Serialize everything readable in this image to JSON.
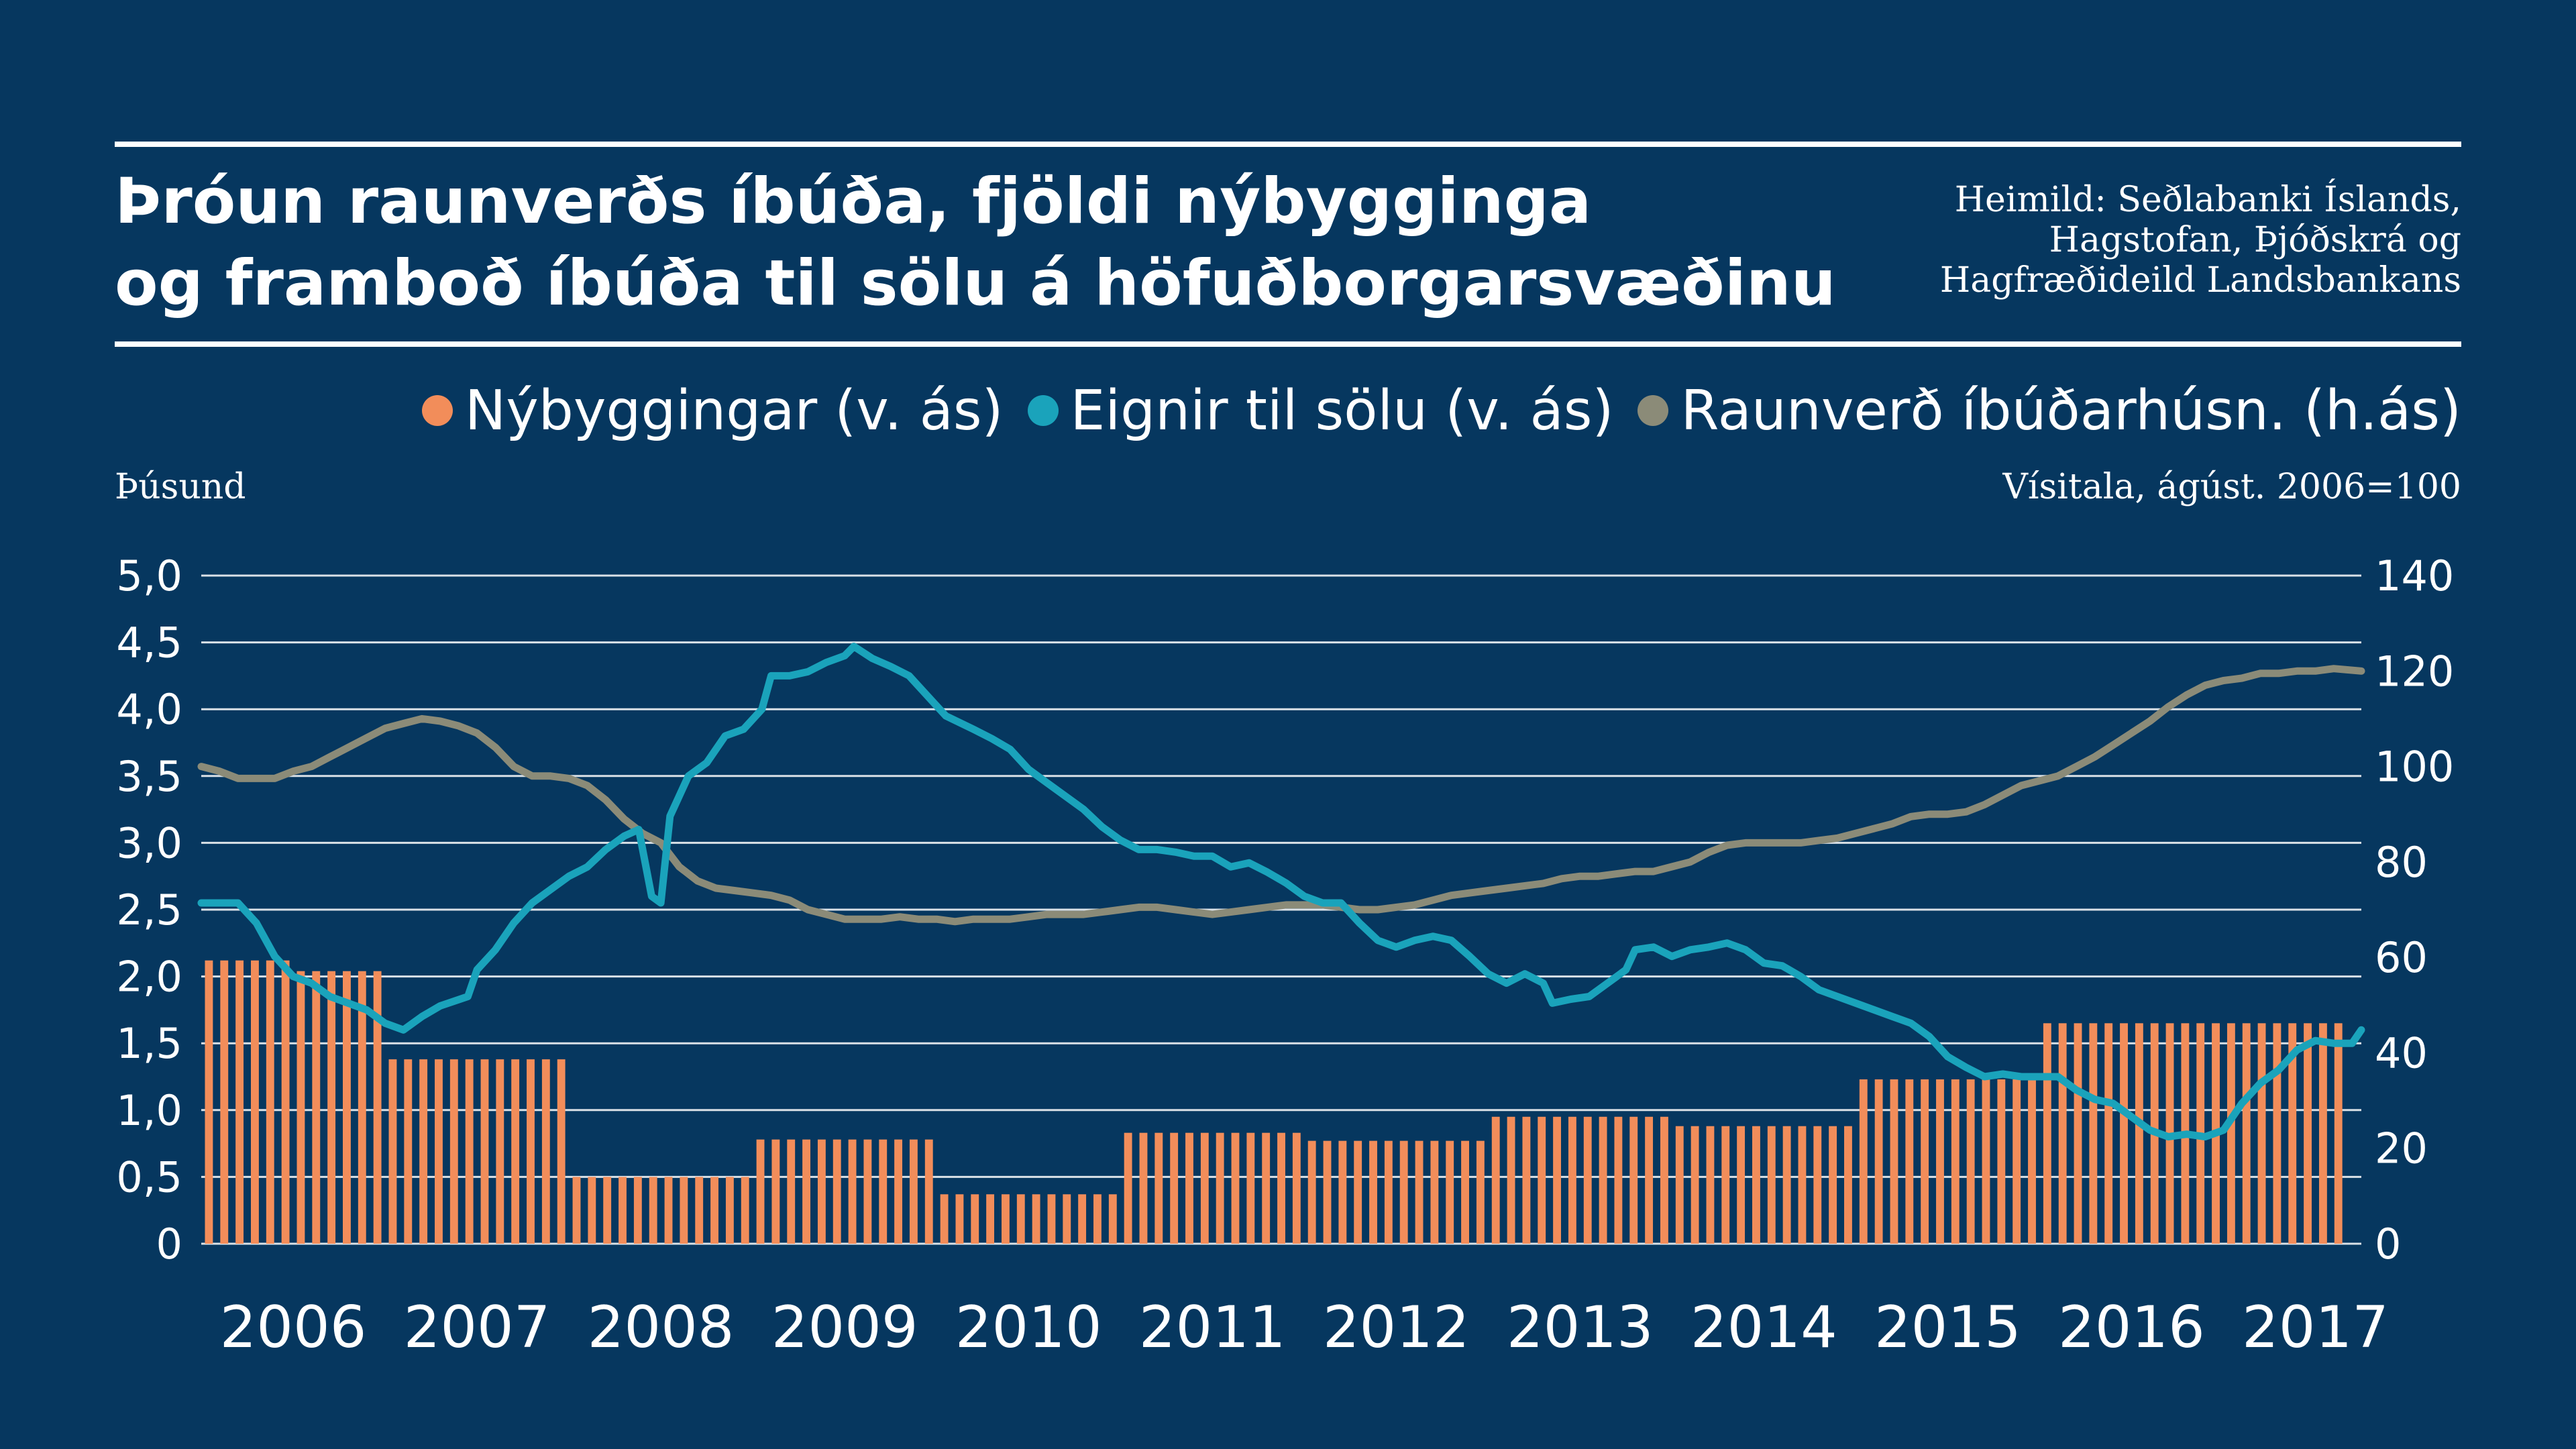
{
  "title": {
    "line1": "Þróun raunverðs íbúða, fjöldi nýbygginga",
    "line2": "og framboð íbúða til sölu á höfuðborgarsvæðinu"
  },
  "source": {
    "line1": "Heimild: Seðlabanki Íslands,",
    "line2": "Hagstofan, Þjóðskrá og",
    "line3": "Hagfræðideild Landsbankans"
  },
  "colors": {
    "background": "#06375f",
    "bars": "#f28d5a",
    "teal": "#1aa3bb",
    "gray": "#8b8b78",
    "grid": "#ffffff",
    "text": "#ffffff"
  },
  "chart_data": {
    "type": "bar+line",
    "title": "Þróun raunverðs íbúða, fjöldi nýbygginga og framboð íbúða til sölu á höfuðborgarsvæðinu",
    "legend_placement": "top-right",
    "grid": true,
    "left_axis": {
      "label": "Þúsund",
      "range": [
        0,
        5
      ],
      "ticks": [
        "0",
        "0,5",
        "1,0",
        "1,5",
        "2,0",
        "2,5",
        "3,0",
        "3,5",
        "4,0",
        "4,5",
        "5,0"
      ]
    },
    "right_axis": {
      "label": "Vísitala, ágúst. 2006=100",
      "range": [
        0,
        140
      ],
      "ticks": [
        "0",
        "20",
        "40",
        "60",
        "80",
        "100",
        "120",
        "140"
      ]
    },
    "x_axis": {
      "start": 2006.0,
      "end": 2017.75,
      "year_labels": [
        "2006",
        "2007",
        "2008",
        "2009",
        "2010",
        "2011",
        "2012",
        "2013",
        "2014",
        "2015",
        "2016",
        "2017"
      ]
    },
    "bars": {
      "name": "Nýbyggingar (v. ás)",
      "axis": "left",
      "bars_per_year": 12,
      "start": 2006.0,
      "count": 140,
      "annual_values": [
        {
          "year": 2006,
          "value": 2.12
        },
        {
          "year": 2006.5,
          "value": 2.04
        },
        {
          "year": 2007,
          "value": 1.38
        },
        {
          "year": 2008,
          "value": 0.5
        },
        {
          "year": 2009,
          "value": 0.78
        },
        {
          "year": 2010,
          "value": 0.37
        },
        {
          "year": 2011,
          "value": 0.83
        },
        {
          "year": 2012,
          "value": 0.77
        },
        {
          "year": 2013,
          "value": 0.95
        },
        {
          "year": 2014,
          "value": 0.88
        },
        {
          "year": 2015,
          "value": 1.23
        },
        {
          "year": 2016,
          "value": 1.65
        },
        {
          "year": 2017,
          "value": 1.65
        }
      ]
    },
    "series": [
      {
        "name": "Eignir til sölu (v. ás)",
        "axis": "left",
        "points": [
          [
            2006.0,
            2.55
          ],
          [
            2006.2,
            2.55
          ],
          [
            2006.3,
            2.4
          ],
          [
            2006.4,
            2.15
          ],
          [
            2006.5,
            2.0
          ],
          [
            2006.6,
            1.95
          ],
          [
            2006.7,
            1.85
          ],
          [
            2006.8,
            1.8
          ],
          [
            2006.9,
            1.75
          ],
          [
            2007.0,
            1.65
          ],
          [
            2007.1,
            1.6
          ],
          [
            2007.2,
            1.7
          ],
          [
            2007.3,
            1.78
          ],
          [
            2007.45,
            1.85
          ],
          [
            2007.5,
            2.05
          ],
          [
            2007.6,
            2.2
          ],
          [
            2007.7,
            2.4
          ],
          [
            2007.8,
            2.55
          ],
          [
            2007.9,
            2.65
          ],
          [
            2008.0,
            2.75
          ],
          [
            2008.1,
            2.82
          ],
          [
            2008.2,
            2.95
          ],
          [
            2008.3,
            3.05
          ],
          [
            2008.38,
            3.1
          ],
          [
            2008.45,
            2.6
          ],
          [
            2008.5,
            2.55
          ],
          [
            2008.55,
            3.2
          ],
          [
            2008.65,
            3.5
          ],
          [
            2008.75,
            3.6
          ],
          [
            2008.85,
            3.8
          ],
          [
            2008.95,
            3.85
          ],
          [
            2009.05,
            4.0
          ],
          [
            2009.1,
            4.25
          ],
          [
            2009.2,
            4.25
          ],
          [
            2009.3,
            4.28
          ],
          [
            2009.4,
            4.35
          ],
          [
            2009.5,
            4.4
          ],
          [
            2009.55,
            4.47
          ],
          [
            2009.65,
            4.38
          ],
          [
            2009.75,
            4.32
          ],
          [
            2009.85,
            4.25
          ],
          [
            2009.95,
            4.1
          ],
          [
            2010.05,
            3.95
          ],
          [
            2010.2,
            3.85
          ],
          [
            2010.3,
            3.78
          ],
          [
            2010.4,
            3.7
          ],
          [
            2010.5,
            3.55
          ],
          [
            2010.6,
            3.45
          ],
          [
            2010.7,
            3.35
          ],
          [
            2010.8,
            3.25
          ],
          [
            2010.9,
            3.12
          ],
          [
            2011.0,
            3.02
          ],
          [
            2011.1,
            2.95
          ],
          [
            2011.2,
            2.95
          ],
          [
            2011.3,
            2.93
          ],
          [
            2011.4,
            2.9
          ],
          [
            2011.5,
            2.9
          ],
          [
            2011.6,
            2.82
          ],
          [
            2011.7,
            2.85
          ],
          [
            2011.8,
            2.78
          ],
          [
            2011.9,
            2.7
          ],
          [
            2012.0,
            2.6
          ],
          [
            2012.1,
            2.55
          ],
          [
            2012.2,
            2.55
          ],
          [
            2012.3,
            2.4
          ],
          [
            2012.4,
            2.27
          ],
          [
            2012.5,
            2.22
          ],
          [
            2012.6,
            2.27
          ],
          [
            2012.7,
            2.3
          ],
          [
            2012.8,
            2.27
          ],
          [
            2012.9,
            2.15
          ],
          [
            2013.0,
            2.02
          ],
          [
            2013.1,
            1.95
          ],
          [
            2013.2,
            2.02
          ],
          [
            2013.3,
            1.95
          ],
          [
            2013.35,
            1.8
          ],
          [
            2013.45,
            1.83
          ],
          [
            2013.55,
            1.85
          ],
          [
            2013.65,
            1.95
          ],
          [
            2013.75,
            2.05
          ],
          [
            2013.8,
            2.2
          ],
          [
            2013.9,
            2.22
          ],
          [
            2014.0,
            2.15
          ],
          [
            2014.1,
            2.2
          ],
          [
            2014.2,
            2.22
          ],
          [
            2014.3,
            2.25
          ],
          [
            2014.4,
            2.2
          ],
          [
            2014.5,
            2.1
          ],
          [
            2014.6,
            2.08
          ],
          [
            2014.7,
            2.0
          ],
          [
            2014.8,
            1.9
          ],
          [
            2014.9,
            1.85
          ],
          [
            2015.0,
            1.8
          ],
          [
            2015.1,
            1.75
          ],
          [
            2015.2,
            1.7
          ],
          [
            2015.3,
            1.65
          ],
          [
            2015.4,
            1.55
          ],
          [
            2015.5,
            1.4
          ],
          [
            2015.6,
            1.32
          ],
          [
            2015.7,
            1.25
          ],
          [
            2015.8,
            1.27
          ],
          [
            2015.9,
            1.25
          ],
          [
            2016.0,
            1.25
          ],
          [
            2016.1,
            1.25
          ],
          [
            2016.2,
            1.15
          ],
          [
            2016.3,
            1.08
          ],
          [
            2016.4,
            1.05
          ],
          [
            2016.5,
            0.95
          ],
          [
            2016.6,
            0.85
          ],
          [
            2016.7,
            0.8
          ],
          [
            2016.8,
            0.82
          ],
          [
            2016.9,
            0.8
          ],
          [
            2017.0,
            0.85
          ],
          [
            2017.1,
            1.05
          ],
          [
            2017.2,
            1.2
          ],
          [
            2017.3,
            1.3
          ],
          [
            2017.4,
            1.45
          ],
          [
            2017.5,
            1.52
          ],
          [
            2017.6,
            1.5
          ],
          [
            2017.7,
            1.5
          ],
          [
            2017.75,
            1.6
          ]
        ]
      },
      {
        "name": "Raunverð íbúðarhúsn. (h.ás)",
        "axis": "right",
        "points": [
          [
            2006.0,
            100
          ],
          [
            2006.1,
            99
          ],
          [
            2006.2,
            97.5
          ],
          [
            2006.3,
            97.5
          ],
          [
            2006.4,
            97.5
          ],
          [
            2006.5,
            99
          ],
          [
            2006.6,
            100
          ],
          [
            2006.7,
            102
          ],
          [
            2006.8,
            104
          ],
          [
            2006.9,
            106
          ],
          [
            2007.0,
            108
          ],
          [
            2007.1,
            109
          ],
          [
            2007.2,
            110
          ],
          [
            2007.3,
            109.5
          ],
          [
            2007.4,
            108.5
          ],
          [
            2007.5,
            107
          ],
          [
            2007.6,
            104
          ],
          [
            2007.7,
            100
          ],
          [
            2007.8,
            98
          ],
          [
            2007.9,
            98
          ],
          [
            2008.0,
            97.5
          ],
          [
            2008.1,
            96
          ],
          [
            2008.2,
            93
          ],
          [
            2008.3,
            89
          ],
          [
            2008.4,
            86
          ],
          [
            2008.5,
            84
          ],
          [
            2008.6,
            79
          ],
          [
            2008.7,
            76
          ],
          [
            2008.8,
            74.5
          ],
          [
            2008.9,
            74
          ],
          [
            2009.0,
            73.5
          ],
          [
            2009.1,
            73
          ],
          [
            2009.2,
            72
          ],
          [
            2009.3,
            70
          ],
          [
            2009.4,
            69
          ],
          [
            2009.5,
            68
          ],
          [
            2009.6,
            68
          ],
          [
            2009.7,
            68
          ],
          [
            2009.8,
            68.5
          ],
          [
            2009.9,
            68
          ],
          [
            2010.0,
            68
          ],
          [
            2010.1,
            67.5
          ],
          [
            2010.2,
            68
          ],
          [
            2010.3,
            68
          ],
          [
            2010.4,
            68
          ],
          [
            2010.5,
            68.5
          ],
          [
            2010.6,
            69
          ],
          [
            2010.7,
            69
          ],
          [
            2010.8,
            69
          ],
          [
            2010.9,
            69.5
          ],
          [
            2011.0,
            70
          ],
          [
            2011.1,
            70.5
          ],
          [
            2011.2,
            70.5
          ],
          [
            2011.3,
            70
          ],
          [
            2011.4,
            69.5
          ],
          [
            2011.5,
            69
          ],
          [
            2011.6,
            69.5
          ],
          [
            2011.7,
            70
          ],
          [
            2011.8,
            70.5
          ],
          [
            2011.9,
            71
          ],
          [
            2012.0,
            71
          ],
          [
            2012.1,
            71
          ],
          [
            2012.2,
            70.5
          ],
          [
            2012.3,
            70
          ],
          [
            2012.4,
            70
          ],
          [
            2012.5,
            70.5
          ],
          [
            2012.6,
            71
          ],
          [
            2012.7,
            72
          ],
          [
            2012.8,
            73
          ],
          [
            2012.9,
            73.5
          ],
          [
            2013.0,
            74
          ],
          [
            2013.1,
            74.5
          ],
          [
            2013.2,
            75
          ],
          [
            2013.3,
            75.5
          ],
          [
            2013.4,
            76.5
          ],
          [
            2013.5,
            77
          ],
          [
            2013.6,
            77
          ],
          [
            2013.7,
            77.5
          ],
          [
            2013.8,
            78
          ],
          [
            2013.9,
            78
          ],
          [
            2014.0,
            79
          ],
          [
            2014.1,
            80
          ],
          [
            2014.2,
            82
          ],
          [
            2014.3,
            83.5
          ],
          [
            2014.4,
            84
          ],
          [
            2014.5,
            84
          ],
          [
            2014.6,
            84
          ],
          [
            2014.7,
            84
          ],
          [
            2014.8,
            84.5
          ],
          [
            2014.9,
            85
          ],
          [
            2015.0,
            86
          ],
          [
            2015.1,
            87
          ],
          [
            2015.2,
            88
          ],
          [
            2015.3,
            89.5
          ],
          [
            2015.4,
            90
          ],
          [
            2015.5,
            90
          ],
          [
            2015.6,
            90.5
          ],
          [
            2015.7,
            92
          ],
          [
            2015.8,
            94
          ],
          [
            2015.9,
            96
          ],
          [
            2016.0,
            97
          ],
          [
            2016.1,
            98
          ],
          [
            2016.2,
            100
          ],
          [
            2016.3,
            102
          ],
          [
            2016.4,
            104.5
          ],
          [
            2016.5,
            107
          ],
          [
            2016.6,
            109.5
          ],
          [
            2016.7,
            112.5
          ],
          [
            2016.8,
            115
          ],
          [
            2016.9,
            117
          ],
          [
            2017.0,
            118
          ],
          [
            2017.1,
            118.5
          ],
          [
            2017.2,
            119.5
          ],
          [
            2017.3,
            119.5
          ],
          [
            2017.4,
            120
          ],
          [
            2017.5,
            120
          ],
          [
            2017.6,
            120.5
          ],
          [
            2017.75,
            120
          ]
        ]
      }
    ]
  }
}
